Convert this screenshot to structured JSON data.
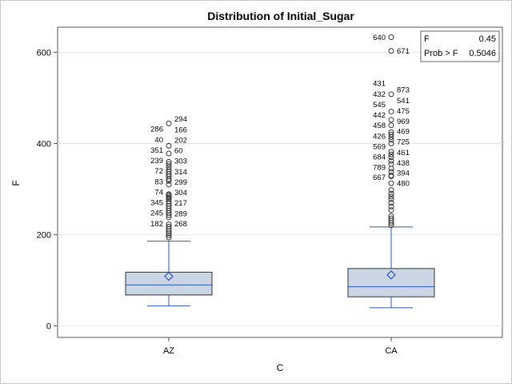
{
  "chart_data": {
    "type": "boxplot",
    "title": "Distribution of Initial_Sugar",
    "xlabel": "C",
    "ylabel": "F",
    "ylim": [
      -25,
      655
    ],
    "yticks": [
      0,
      200,
      400,
      600
    ],
    "grid": true,
    "colors": {
      "box_fill": "#cad5e5",
      "accent": "#2c56b8",
      "outline": "#333333",
      "grid": "#e6e6e6"
    },
    "stats_box": {
      "rows": [
        {
          "label": "F",
          "value": "0.45"
        },
        {
          "label": "Prob > F",
          "value": "0.5046"
        }
      ],
      "placement": "top-right"
    },
    "groups": [
      {
        "category": "AZ",
        "min": 44,
        "q1": 68,
        "median": 90,
        "q3": 118,
        "max": 186,
        "mean": 109,
        "outliers": [
          194,
          199,
          203,
          208,
          213,
          218,
          223,
          238,
          243,
          248,
          253,
          258,
          263,
          268,
          273,
          278,
          281,
          284,
          287,
          289,
          310,
          318,
          322,
          328,
          333,
          338,
          343,
          349,
          355,
          360,
          378,
          395,
          444
        ],
        "labels_left": [
          {
            "id": "286",
            "y": 432
          },
          {
            "id": "40",
            "y": 409
          },
          {
            "id": "351",
            "y": 386
          },
          {
            "id": "239",
            "y": 363
          },
          {
            "id": "72",
            "y": 340
          },
          {
            "id": "83",
            "y": 317
          },
          {
            "id": "74",
            "y": 294
          },
          {
            "id": "345",
            "y": 271
          },
          {
            "id": "245",
            "y": 248
          },
          {
            "id": "182",
            "y": 225
          }
        ],
        "labels_right": [
          {
            "id": "294",
            "y": 454
          },
          {
            "id": "166",
            "y": 431
          },
          {
            "id": "202",
            "y": 408
          },
          {
            "id": "60",
            "y": 385
          },
          {
            "id": "303",
            "y": 362
          },
          {
            "id": "314",
            "y": 339
          },
          {
            "id": "299",
            "y": 316
          },
          {
            "id": "304",
            "y": 293
          },
          {
            "id": "217",
            "y": 270
          },
          {
            "id": "289",
            "y": 247
          },
          {
            "id": "268",
            "y": 225
          }
        ]
      },
      {
        "category": "CA",
        "min": 40,
        "q1": 64,
        "median": 86,
        "q3": 126,
        "max": 217,
        "mean": 112,
        "outliers": [
          221,
          226,
          231,
          236,
          241,
          254,
          262,
          270,
          278,
          284,
          290,
          298,
          313,
          328,
          330,
          338,
          345,
          355,
          362,
          370,
          376,
          382,
          400,
          408,
          414,
          420,
          425,
          440,
          452,
          470,
          508,
          603,
          633
        ],
        "labels_left": [
          {
            "id": "640",
            "y": 633
          },
          {
            "id": "431",
            "y": 532
          },
          {
            "id": "432",
            "y": 509
          },
          {
            "id": "545",
            "y": 486
          },
          {
            "id": "442",
            "y": 463
          },
          {
            "id": "458",
            "y": 440
          },
          {
            "id": "426",
            "y": 417
          },
          {
            "id": "569",
            "y": 394
          },
          {
            "id": "684",
            "y": 371
          },
          {
            "id": "789",
            "y": 348
          },
          {
            "id": "667",
            "y": 326
          }
        ],
        "labels_right": [
          {
            "id": "671",
            "y": 603
          },
          {
            "id": "873",
            "y": 518
          },
          {
            "id": "541",
            "y": 495
          },
          {
            "id": "475",
            "y": 472
          },
          {
            "id": "969",
            "y": 449
          },
          {
            "id": "469",
            "y": 427
          },
          {
            "id": "725",
            "y": 404
          },
          {
            "id": "461",
            "y": 381
          },
          {
            "id": "438",
            "y": 358
          },
          {
            "id": "394",
            "y": 336
          },
          {
            "id": "480",
            "y": 313
          }
        ]
      }
    ]
  }
}
